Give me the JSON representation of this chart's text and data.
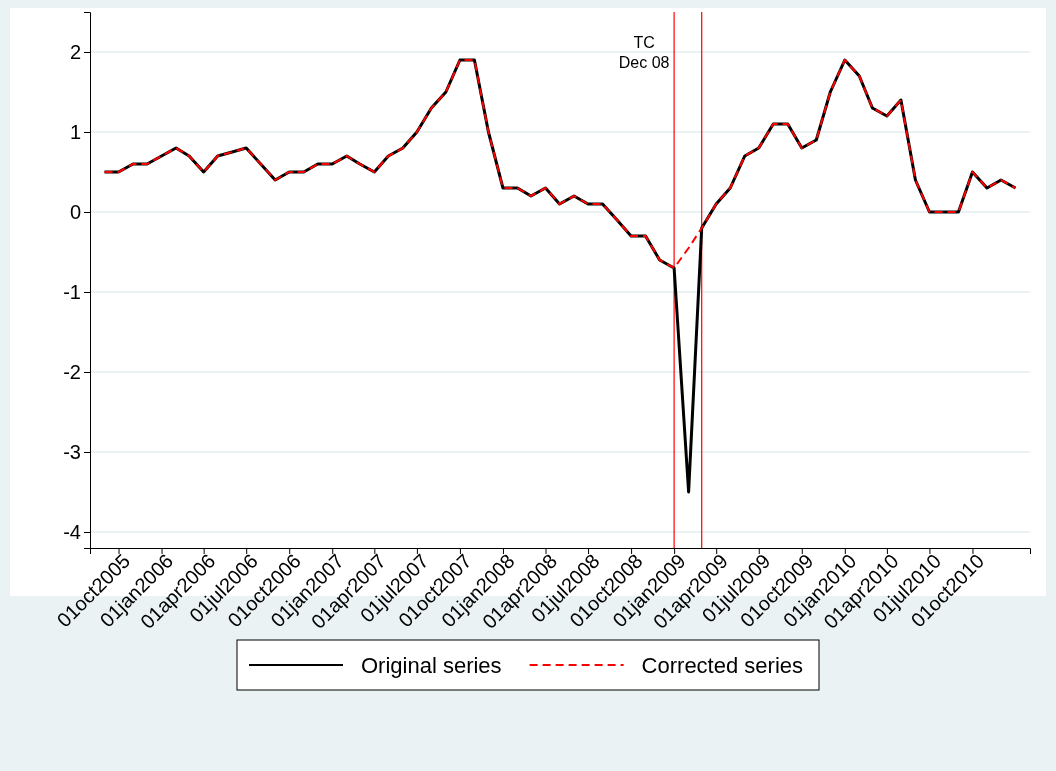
{
  "chart_data": {
    "type": "line",
    "x": [
      "2005-09",
      "2005-10",
      "2005-11",
      "2005-12",
      "2006-01",
      "2006-02",
      "2006-03",
      "2006-04",
      "2006-05",
      "2006-06",
      "2006-07",
      "2006-08",
      "2006-09",
      "2006-10",
      "2006-11",
      "2006-12",
      "2007-01",
      "2007-02",
      "2007-03",
      "2007-04",
      "2007-05",
      "2007-06",
      "2007-07",
      "2007-08",
      "2007-09",
      "2007-10",
      "2007-11",
      "2007-12",
      "2008-01",
      "2008-02",
      "2008-03",
      "2008-04",
      "2008-05",
      "2008-06",
      "2008-07",
      "2008-08",
      "2008-09",
      "2008-10",
      "2008-11",
      "2008-12",
      "2009-01",
      "2009-02",
      "2009-03",
      "2009-04",
      "2009-05",
      "2009-06",
      "2009-07",
      "2009-08",
      "2009-09",
      "2009-10",
      "2009-11",
      "2009-12",
      "2010-01",
      "2010-02",
      "2010-03",
      "2010-04",
      "2010-05",
      "2010-06",
      "2010-07",
      "2010-08",
      "2010-09",
      "2010-10",
      "2010-11",
      "2010-12",
      "2011-01"
    ],
    "series": [
      {
        "name": "Original series",
        "color": "#000000",
        "line_style": "solid",
        "values": [
          0.5,
          0.5,
          0.6,
          0.6,
          0.7,
          0.8,
          0.7,
          0.5,
          0.7,
          0.75,
          0.8,
          0.6,
          0.4,
          0.5,
          0.5,
          0.6,
          0.6,
          0.7,
          0.6,
          0.5,
          0.7,
          0.8,
          1.0,
          1.3,
          1.5,
          1.9,
          1.9,
          1.0,
          0.3,
          0.3,
          0.2,
          0.3,
          0.1,
          0.2,
          0.1,
          0.1,
          -0.1,
          -0.3,
          -0.3,
          -0.6,
          -0.7,
          -3.5,
          -0.2,
          0.1,
          0.3,
          0.7,
          0.8,
          1.1,
          1.1,
          0.8,
          0.9,
          1.5,
          1.9,
          1.7,
          1.3,
          1.2,
          1.4,
          0.4,
          0,
          0,
          0,
          0.5,
          0.3,
          0.4,
          0.3
        ]
      },
      {
        "name": "Corrected series",
        "color": "#ff0000",
        "line_style": "dashed",
        "values": [
          0.5,
          0.5,
          0.6,
          0.6,
          0.7,
          0.8,
          0.7,
          0.5,
          0.7,
          0.75,
          0.8,
          0.6,
          0.4,
          0.5,
          0.5,
          0.6,
          0.6,
          0.7,
          0.6,
          0.5,
          0.7,
          0.8,
          1.0,
          1.3,
          1.5,
          1.9,
          1.9,
          1.0,
          0.3,
          0.3,
          0.2,
          0.3,
          0.1,
          0.2,
          0.1,
          0.1,
          -0.1,
          -0.3,
          -0.3,
          -0.6,
          -0.7,
          -0.45,
          -0.2,
          0.1,
          0.3,
          0.7,
          0.8,
          1.1,
          1.1,
          0.8,
          0.9,
          1.5,
          1.9,
          1.7,
          1.3,
          1.2,
          1.4,
          0.4,
          0,
          0,
          0,
          0.5,
          0.3,
          0.4,
          0.3
        ]
      }
    ],
    "xlim": [
      "2005-08",
      "2011-02"
    ],
    "xticks": [
      {
        "value": "2005-10-01",
        "label": "01oct2005"
      },
      {
        "value": "2006-01-01",
        "label": "01jan2006"
      },
      {
        "value": "2006-04-01",
        "label": "01apr2006"
      },
      {
        "value": "2006-07-01",
        "label": "01jul2006"
      },
      {
        "value": "2006-10-01",
        "label": "01oct2006"
      },
      {
        "value": "2007-01-01",
        "label": "01jan2007"
      },
      {
        "value": "2007-04-01",
        "label": "01apr2007"
      },
      {
        "value": "2007-07-01",
        "label": "01jul2007"
      },
      {
        "value": "2007-10-01",
        "label": "01oct2007"
      },
      {
        "value": "2008-01-01",
        "label": "01jan2008"
      },
      {
        "value": "2008-04-01",
        "label": "01apr2008"
      },
      {
        "value": "2008-07-01",
        "label": "01jul2008"
      },
      {
        "value": "2008-10-01",
        "label": "01oct2008"
      },
      {
        "value": "2009-01-01",
        "label": "01jan2009"
      },
      {
        "value": "2009-04-01",
        "label": "01apr2009"
      },
      {
        "value": "2009-07-01",
        "label": "01jul2009"
      },
      {
        "value": "2009-10-01",
        "label": "01oct2009"
      },
      {
        "value": "2010-01-01",
        "label": "01jan2010"
      },
      {
        "value": "2010-04-01",
        "label": "01apr2010"
      },
      {
        "value": "2010-07-01",
        "label": "01jul2010"
      },
      {
        "value": "2010-10-01",
        "label": "01oct2010"
      }
    ],
    "ylim": [
      -4.2,
      2.5
    ],
    "yticks": [
      -4,
      -3,
      -2,
      -1,
      0,
      1,
      2
    ],
    "grid": "y",
    "legend": "bottom",
    "marker": "none",
    "ref_lines": [
      {
        "axis": "x",
        "value": "2009-01",
        "label": "TC\nDec 08",
        "color": "#ff0000"
      },
      {
        "axis": "x",
        "value": "2009-03",
        "color": "#ff0000"
      }
    ]
  }
}
